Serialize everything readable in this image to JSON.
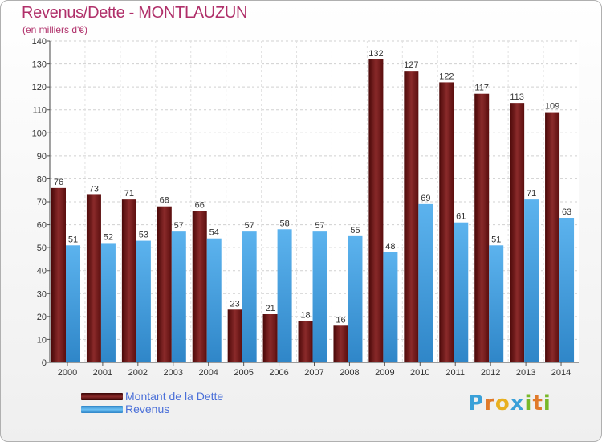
{
  "header": {
    "title": "Revenus/Dette - MONTLAUZUN",
    "subtitle": "(en milliers d'€)"
  },
  "chart_data": {
    "type": "bar",
    "categories": [
      "2000",
      "2001",
      "2002",
      "2003",
      "2004",
      "2005",
      "2006",
      "2007",
      "2008",
      "2009",
      "2010",
      "2011",
      "2012",
      "2013",
      "2014"
    ],
    "series": [
      {
        "name": "Montant de la Dette",
        "color": "#7a1c1c",
        "values": [
          76,
          73,
          71,
          68,
          66,
          23,
          21,
          18,
          16,
          132,
          127,
          122,
          117,
          113,
          109
        ]
      },
      {
        "name": "Revenus",
        "color": "#4aa3e0",
        "values": [
          51,
          52,
          53,
          57,
          54,
          57,
          58,
          57,
          55,
          48,
          69,
          61,
          51,
          71,
          63
        ]
      }
    ],
    "yticks": [
      0,
      10,
      20,
      30,
      40,
      50,
      60,
      70,
      80,
      90,
      100,
      110,
      120,
      130,
      140
    ],
    "ylim": [
      0,
      140
    ],
    "grid": true,
    "legend_position": "bottom-left"
  },
  "legend": {
    "items": [
      {
        "label": "Montant de la Dette",
        "color": "#6b1515"
      },
      {
        "label": "Revenus",
        "color": "#4aa3e0"
      }
    ]
  },
  "brand": {
    "letters": [
      "P",
      "r",
      "o",
      "x",
      "i",
      "t",
      "i"
    ],
    "colors": [
      "#3aa0d8",
      "#e07a2a",
      "#e8b020",
      "#3aa0d8",
      "#78b828",
      "#e07a2a",
      "#78b828"
    ]
  }
}
